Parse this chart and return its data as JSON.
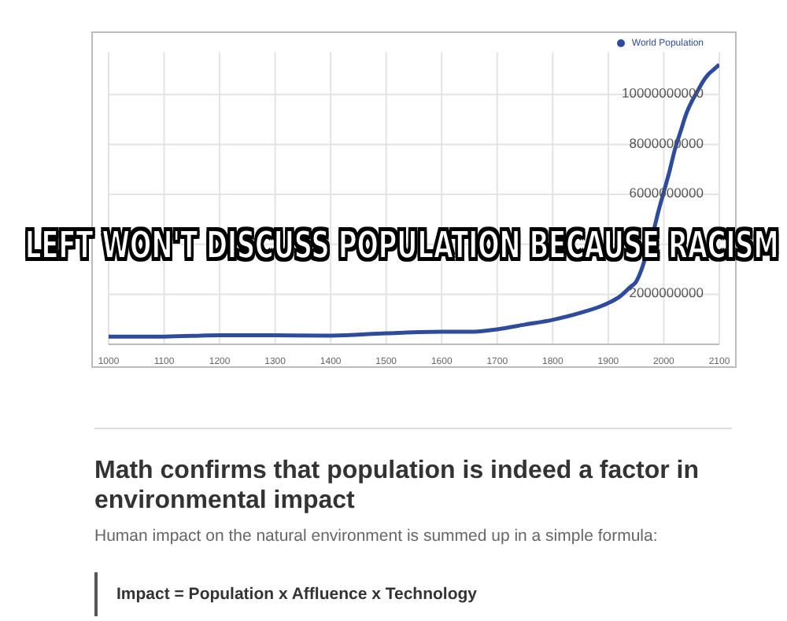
{
  "chart_data": {
    "type": "line",
    "x": [
      1000,
      1100,
      1200,
      1300,
      1400,
      1500,
      1600,
      1650,
      1700,
      1750,
      1800,
      1850,
      1900,
      1920,
      1940,
      1950,
      1960,
      1970,
      1980,
      1990,
      2000,
      2010,
      2020,
      2030,
      2040,
      2050,
      2060,
      2070,
      2080,
      2090,
      2100
    ],
    "series": [
      {
        "name": "World Population",
        "color": "#2f4b9c",
        "values": [
          310000000,
          310000000,
          360000000,
          360000000,
          350000000,
          440000000,
          500000000,
          500000000,
          600000000,
          790000000,
          980000000,
          1260000000,
          1650000000,
          1900000000,
          2300000000,
          2500000000,
          3000000000,
          3700000000,
          4400000000,
          5300000000,
          6100000000,
          6900000000,
          7800000000,
          8500000000,
          9200000000,
          9700000000,
          10100000000,
          10500000000,
          10800000000,
          11000000000,
          11200000000
        ]
      }
    ],
    "xlim": [
      1000,
      2100
    ],
    "xticks": [
      1000,
      1100,
      1200,
      1300,
      1400,
      1500,
      1600,
      1700,
      1800,
      1900,
      2000,
      2100
    ],
    "ylim": [
      0,
      11700000000
    ],
    "yticks": [
      2000000000,
      {
        "value": 4000000000,
        "label": null
      },
      6000000000,
      8000000000,
      10000000000
    ],
    "grid": true,
    "legend": "top right",
    "marker": "none",
    "line_style": "solid",
    "annotations": [
      "LEFT WON'T DISCUSS POPULATION BECAUSE RACISM",
      "Math confirms that population is indeed a factor in environmental impact",
      "Human impact on the natural environment is summed up in a simple formula:",
      "Impact = Population x Affluence x Technology"
    ]
  }
}
